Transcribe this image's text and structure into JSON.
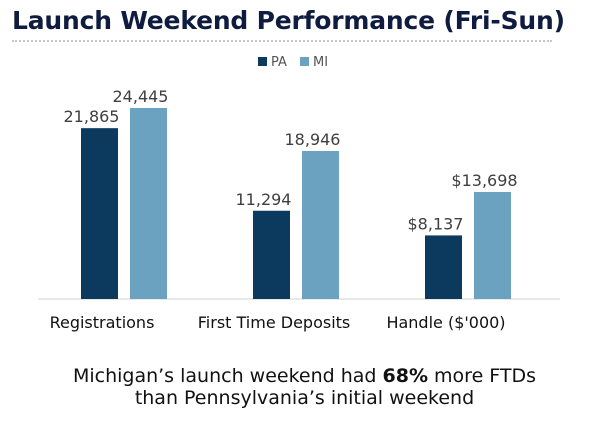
{
  "title": "Launch Weekend Performance (Fri-Sun)",
  "caption": {
    "line1_pre": "Michigan’s launch weekend had ",
    "line1_bold": "68%",
    "line1_post": " more FTDs",
    "line2": "than Pennsylvania’s initial weekend"
  },
  "colors": {
    "PA": "#0c3a5f",
    "MI": "#6aa2bf",
    "title": "#0f1c3f"
  },
  "chart_data": {
    "type": "bar",
    "categories": [
      "Registrations",
      "First Time Deposits",
      "Handle ($'000)"
    ],
    "series": [
      {
        "name": "PA",
        "values": [
          21865,
          11294,
          8137
        ],
        "labels": [
          "21,865",
          "11,294",
          "$8,137"
        ]
      },
      {
        "name": "MI",
        "values": [
          24445,
          18946,
          13698
        ],
        "labels": [
          "24,445",
          "18,946",
          "$13,698"
        ]
      }
    ],
    "legend": "top-center",
    "grid": false
  }
}
